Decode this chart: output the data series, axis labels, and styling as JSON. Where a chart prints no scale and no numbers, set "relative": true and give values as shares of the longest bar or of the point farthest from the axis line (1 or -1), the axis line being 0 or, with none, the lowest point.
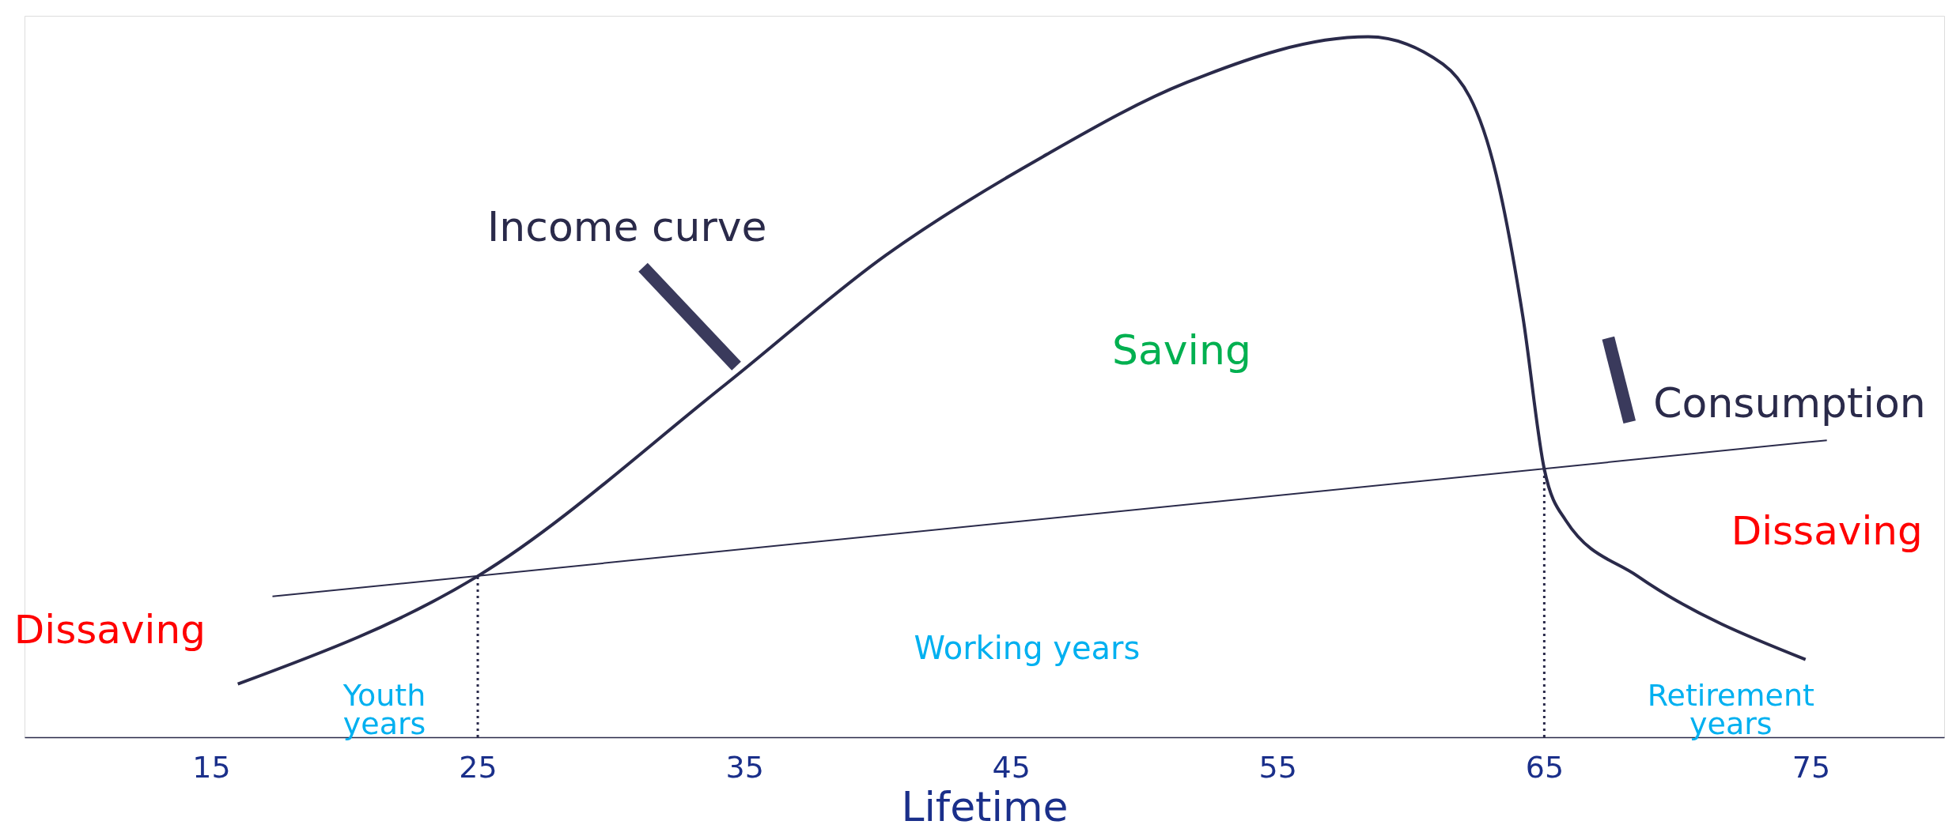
{
  "chart_data": {
    "type": "line",
    "relative": true,
    "xlabel": "Lifetime",
    "xlim": [
      8,
      80
    ],
    "xticks": [
      15,
      25,
      35,
      45,
      55,
      65,
      75
    ],
    "series": [
      {
        "name": "Income curve",
        "color": "#2a2a4a",
        "x": [
          16.0,
          25,
          34.3,
          40.3,
          46.2,
          51.6,
          58.4,
          61.2,
          63.2,
          64.2,
          65,
          65.8,
          68.5,
          74.8
        ],
        "values": [
          0.076,
          0.23,
          0.504,
          0.688,
          0.829,
          0.935,
          1.0,
          0.961,
          0.803,
          0.6,
          0.383,
          0.31,
          0.23,
          0.111
        ]
      },
      {
        "name": "Consumption",
        "color": "#2a2a4a",
        "x": [
          17.3,
          75.6
        ],
        "values": [
          0.201,
          0.424
        ]
      }
    ],
    "ref_lines": [
      {
        "axis": "x",
        "value": 25,
        "color": "#2a2a4a",
        "line_style": "dotted"
      },
      {
        "axis": "x",
        "value": 65,
        "color": "#2a2a4a",
        "line_style": "dotted"
      }
    ],
    "annotations": [
      "Saving",
      "Dissaving",
      "Dissaving",
      "Youth years",
      "Working years",
      "Retirement years"
    ]
  }
}
